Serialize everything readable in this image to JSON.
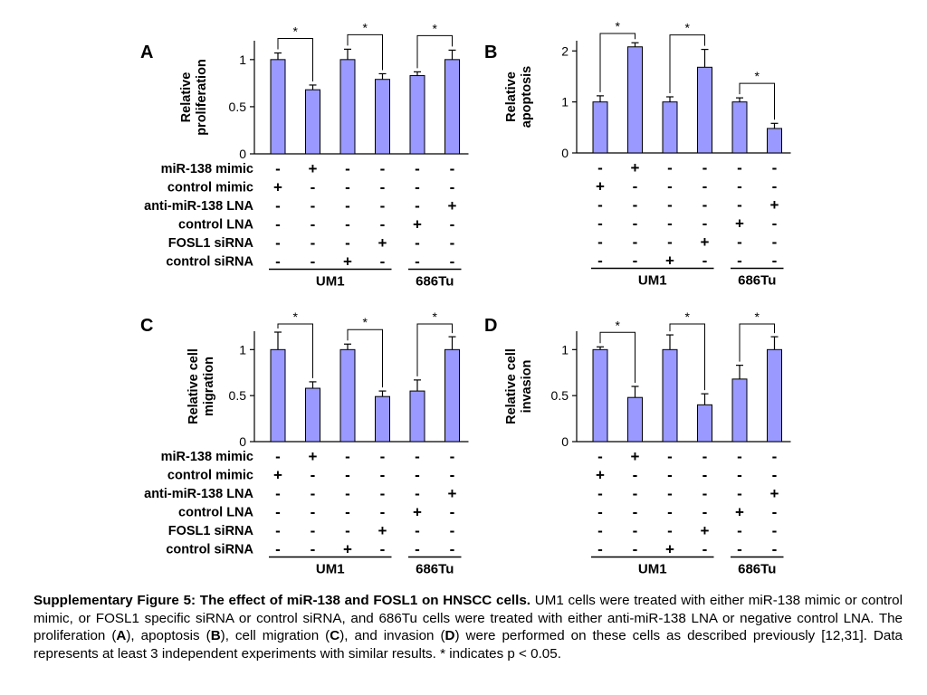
{
  "conditions": [
    "miR-138 mimic",
    "control mimic",
    "anti-miR-138 LNA",
    "control LNA",
    "FOSL1 siRNA",
    "control siRNA"
  ],
  "signs": [
    [
      "-",
      "+",
      "-",
      "-",
      "-",
      "-"
    ],
    [
      "+",
      "-",
      "-",
      "-",
      "-",
      "-"
    ],
    [
      "-",
      "-",
      "-",
      "-",
      "-",
      "+"
    ],
    [
      "-",
      "-",
      "-",
      "-",
      "+",
      "-"
    ],
    [
      "-",
      "-",
      "-",
      "+",
      "-",
      "-"
    ],
    [
      "-",
      "-",
      "+",
      "-",
      "-",
      "-"
    ]
  ],
  "cell_lines": [
    "UM1",
    "686Tu"
  ],
  "significance_marker": "*",
  "chart_data": [
    {
      "type": "bar",
      "panel": "A",
      "ylabel": [
        "Relative",
        "proliferation"
      ],
      "ylim": [
        0,
        1.2
      ],
      "yticks": [
        0,
        0.5,
        1
      ],
      "ytick_labels": [
        "0",
        "0.5",
        "1"
      ],
      "values": [
        1.0,
        0.68,
        1.0,
        0.79,
        0.83,
        1.0
      ],
      "errors": [
        0.07,
        0.05,
        0.11,
        0.06,
        0.04,
        0.1
      ],
      "significance_pairs": [
        [
          0,
          1
        ],
        [
          2,
          3
        ],
        [
          4,
          5
        ]
      ],
      "show_conditions": true
    },
    {
      "type": "bar",
      "panel": "B",
      "ylabel": [
        "Relative",
        "apoptosis"
      ],
      "ylim": [
        0,
        2.2
      ],
      "yticks": [
        0,
        1,
        2
      ],
      "ytick_labels": [
        "0",
        "1",
        "2"
      ],
      "values": [
        1.0,
        2.08,
        1.0,
        1.68,
        1.0,
        0.48
      ],
      "errors": [
        0.12,
        0.08,
        0.1,
        0.35,
        0.08,
        0.1
      ],
      "significance_pairs": [
        [
          0,
          1
        ],
        [
          2,
          3
        ],
        [
          4,
          5
        ]
      ],
      "show_conditions": false
    },
    {
      "type": "bar",
      "panel": "C",
      "ylabel": [
        "Relative cell",
        "migration"
      ],
      "ylim": [
        0,
        1.2
      ],
      "yticks": [
        0,
        0.5,
        1
      ],
      "ytick_labels": [
        "0",
        "0.5",
        "1"
      ],
      "values": [
        1.0,
        0.58,
        1.0,
        0.49,
        0.55,
        1.0
      ],
      "errors": [
        0.19,
        0.07,
        0.06,
        0.06,
        0.12,
        0.14
      ],
      "significance_pairs": [
        [
          0,
          1
        ],
        [
          2,
          3
        ],
        [
          4,
          5
        ]
      ],
      "show_conditions": true
    },
    {
      "type": "bar",
      "panel": "D",
      "ylabel": [
        "Relative cell",
        "invasion"
      ],
      "ylim": [
        0,
        1.2
      ],
      "yticks": [
        0,
        0.5,
        1
      ],
      "ytick_labels": [
        "0",
        "0.5",
        "1"
      ],
      "values": [
        1.0,
        0.48,
        1.0,
        0.4,
        0.68,
        1.0
      ],
      "errors": [
        0.03,
        0.12,
        0.16,
        0.12,
        0.15,
        0.14
      ],
      "significance_pairs": [
        [
          0,
          1
        ],
        [
          2,
          3
        ],
        [
          4,
          5
        ]
      ],
      "show_conditions": false
    }
  ],
  "caption": {
    "bold": "Supplementary Figure 5: The effect of miR-138 and FOSL1 on HNSCC cells.",
    "text1": " UM1 cells were treated with either miR-138 mimic or control mimic, or FOSL1 specific siRNA or control siRNA, and 686Tu cells were treated with either anti-miR-138 LNA or negative control LNA. The proliferation (",
    "A": "A",
    "text2": "), apoptosis (",
    "B": "B",
    "text3": "), cell migration (",
    "C": "C",
    "text4": "), and invasion (",
    "D": "D",
    "text5": ") were performed on these cells as described previously [12,31]. Data represents at least 3 independent experiments with similar results. * indicates p < 0.05."
  },
  "colors": {
    "bar_fill": "#9999ff",
    "bar_stroke": "#000000",
    "text": "#000000"
  }
}
